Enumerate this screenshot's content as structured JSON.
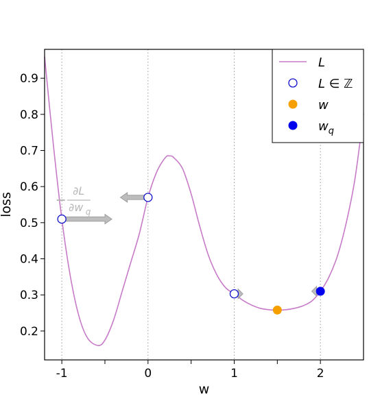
{
  "chart_data": {
    "type": "line",
    "title": "",
    "xlabel": "w",
    "ylabel": "loss",
    "xlim": [
      -1.2,
      2.5
    ],
    "ylim": [
      0.12,
      0.98
    ],
    "x_ticks": [
      -1,
      0,
      1,
      2
    ],
    "x_tick_labels": [
      "-1",
      "0",
      "1",
      "2"
    ],
    "x_minor_ticks": [
      -0.5,
      0.5,
      1.5
    ],
    "y_ticks": [
      0.2,
      0.3,
      0.4,
      0.5,
      0.6,
      0.7,
      0.8,
      0.9
    ],
    "y_tick_labels": [
      "0.2",
      "0.3",
      "0.4",
      "0.5",
      "0.6",
      "0.7",
      "0.8",
      "0.9"
    ],
    "vertical_gridlines_at": [
      -1,
      0,
      1,
      2
    ],
    "curve": {
      "legend_label": "L",
      "color": "#c77ac7",
      "points": [
        [
          -1.2,
          0.96
        ],
        [
          -1.1,
          0.72
        ],
        [
          -1.0,
          0.51
        ],
        [
          -0.9,
          0.35
        ],
        [
          -0.8,
          0.24
        ],
        [
          -0.7,
          0.18
        ],
        [
          -0.58,
          0.16
        ],
        [
          -0.5,
          0.175
        ],
        [
          -0.4,
          0.23
        ],
        [
          -0.3,
          0.31
        ],
        [
          -0.2,
          0.39
        ],
        [
          -0.1,
          0.47
        ],
        [
          0.0,
          0.57
        ],
        [
          0.1,
          0.64
        ],
        [
          0.2,
          0.68
        ],
        [
          0.25,
          0.685
        ],
        [
          0.3,
          0.68
        ],
        [
          0.4,
          0.65
        ],
        [
          0.5,
          0.58
        ],
        [
          0.6,
          0.49
        ],
        [
          0.7,
          0.41
        ],
        [
          0.8,
          0.355
        ],
        [
          0.9,
          0.32
        ],
        [
          1.0,
          0.303
        ],
        [
          1.1,
          0.285
        ],
        [
          1.2,
          0.272
        ],
        [
          1.3,
          0.263
        ],
        [
          1.4,
          0.259
        ],
        [
          1.5,
          0.258
        ],
        [
          1.6,
          0.259
        ],
        [
          1.7,
          0.263
        ],
        [
          1.8,
          0.27
        ],
        [
          1.9,
          0.283
        ],
        [
          2.0,
          0.31
        ],
        [
          2.1,
          0.35
        ],
        [
          2.2,
          0.41
        ],
        [
          2.3,
          0.5
        ],
        [
          2.4,
          0.62
        ],
        [
          2.5,
          0.8
        ]
      ]
    },
    "integer_points": {
      "legend_label": "L ∈ ℤ",
      "color": "#1010cc",
      "points": [
        [
          -1,
          0.51
        ],
        [
          0,
          0.57
        ],
        [
          1,
          0.303
        ]
      ]
    },
    "w_point": {
      "legend_label": "w",
      "color": "#f5a000",
      "x": 1.5,
      "y": 0.258
    },
    "wq_point": {
      "legend_label": "w_q",
      "color": "#0000ee",
      "x": 2.0,
      "y": 0.31
    },
    "gradient_arrows": [
      {
        "x": -1.0,
        "y": 0.51,
        "dx": 0.58
      },
      {
        "x": 0.0,
        "y": 0.57,
        "dx": -0.32
      },
      {
        "x": 1.0,
        "y": 0.303,
        "dx": 0.1
      },
      {
        "x": 2.0,
        "y": 0.31,
        "dx": -0.1
      }
    ],
    "annotation": "−∂L/∂w_q",
    "annotation_at": {
      "x": -0.9,
      "y": 0.57
    },
    "legend_position": "top-right",
    "grid": "vertical dotted at integer w"
  }
}
